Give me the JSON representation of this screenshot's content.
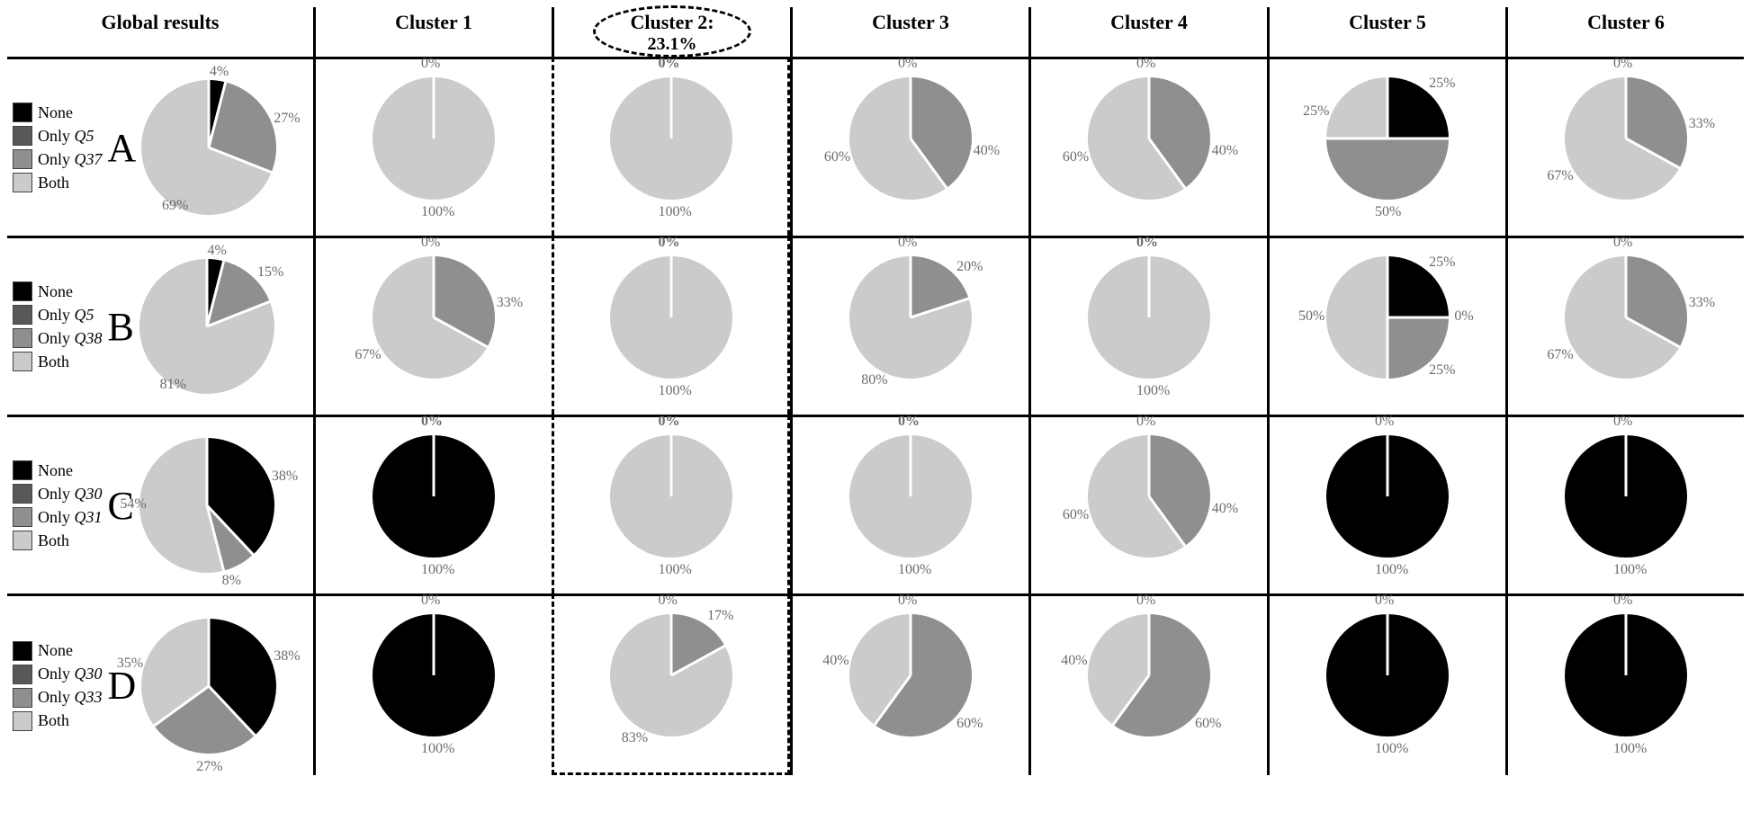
{
  "colors": {
    "none": "#000000",
    "onlyA": "#585858",
    "onlyB": "#8f8f8f",
    "both": "#cbcbcb",
    "gap": "#ffffff",
    "label": "#6b6b6b"
  },
  "geometry": {
    "global_pie_r": 75,
    "cluster_pie_r": 68,
    "gap_width": 3
  },
  "headers": {
    "global": "Global results",
    "clusters": [
      "Cluster 1",
      "Cluster 2:",
      "Cluster 3",
      "Cluster 4",
      "Cluster 5",
      "Cluster 6"
    ],
    "cluster2_sub": "23.1%"
  },
  "rows": [
    {
      "letter": "A",
      "legend": [
        "None",
        "Only Q5",
        "Only Q37",
        "Both"
      ],
      "legend_italic_idx": [
        1,
        2
      ],
      "global": {
        "slices": [
          {
            "key": "none",
            "pct": 4
          },
          {
            "key": "onlyB",
            "pct": 27
          },
          {
            "key": "both",
            "pct": 69
          }
        ],
        "labels": [
          {
            "text": "4%",
            "ang": -80,
            "r": 1.12
          },
          {
            "text": "27%",
            "ang": -20,
            "r": 1.22
          },
          {
            "text": "69%",
            "ang": 120,
            "r": 1.02
          }
        ]
      },
      "clusters": [
        {
          "slices": [
            {
              "key": "both",
              "pct": 100
            }
          ],
          "labels": [
            {
              "text": "0%",
              "ang": -90,
              "r": 1.2
            },
            {
              "text": "100%",
              "ang": 90,
              "r": 1.22
            }
          ]
        },
        {
          "slices": [
            {
              "key": "both",
              "pct": 100
            }
          ],
          "labels": [
            {
              "text": "0%",
              "ang": -90,
              "r": 1.2,
              "bold": true
            },
            {
              "text": "100%",
              "ang": 90,
              "r": 1.22
            }
          ]
        },
        {
          "slices": [
            {
              "key": "onlyB",
              "pct": 40
            },
            {
              "key": "both",
              "pct": 60
            }
          ],
          "labels": [
            {
              "text": "0%",
              "ang": -90,
              "r": 1.2
            },
            {
              "text": "40%",
              "ang": 10,
              "r": 1.25
            },
            {
              "text": "60%",
              "ang": 165,
              "r": 1.25
            }
          ]
        },
        {
          "slices": [
            {
              "key": "onlyB",
              "pct": 40
            },
            {
              "key": "both",
              "pct": 60
            }
          ],
          "labels": [
            {
              "text": "0%",
              "ang": -90,
              "r": 1.2
            },
            {
              "text": "40%",
              "ang": 10,
              "r": 1.25
            },
            {
              "text": "60%",
              "ang": 165,
              "r": 1.25
            }
          ]
        },
        {
          "slices": [
            {
              "key": "none",
              "pct": 25
            },
            {
              "key": "onlyB",
              "pct": 50
            },
            {
              "key": "both",
              "pct": 25
            }
          ],
          "labels": [
            {
              "text": "25%",
              "ang": -45,
              "r": 1.25
            },
            {
              "text": "50%",
              "ang": 90,
              "r": 1.22
            },
            {
              "text": "25%",
              "ang": 200,
              "r": 1.25
            }
          ]
        },
        {
          "slices": [
            {
              "key": "onlyB",
              "pct": 33
            },
            {
              "key": "both",
              "pct": 67
            }
          ],
          "labels": [
            {
              "text": "0%",
              "ang": -90,
              "r": 1.2
            },
            {
              "text": "33%",
              "ang": -10,
              "r": 1.25
            },
            {
              "text": "67%",
              "ang": 150,
              "r": 1.25
            }
          ]
        }
      ]
    },
    {
      "letter": "B",
      "legend": [
        "None",
        "Only Q5",
        "Only Q38",
        "Both"
      ],
      "legend_italic_idx": [
        1,
        2
      ],
      "global": {
        "slices": [
          {
            "key": "none",
            "pct": 4
          },
          {
            "key": "onlyB",
            "pct": 15
          },
          {
            "key": "both",
            "pct": 81
          }
        ],
        "labels": [
          {
            "text": "4%",
            "ang": -80,
            "r": 1.12
          },
          {
            "text": "15%",
            "ang": -40,
            "r": 1.22
          },
          {
            "text": "81%",
            "ang": 120,
            "r": 1.02
          }
        ]
      },
      "clusters": [
        {
          "slices": [
            {
              "key": "onlyB",
              "pct": 33
            },
            {
              "key": "both",
              "pct": 67
            }
          ],
          "labels": [
            {
              "text": "0%",
              "ang": -90,
              "r": 1.2
            },
            {
              "text": "33%",
              "ang": -10,
              "r": 1.25
            },
            {
              "text": "67%",
              "ang": 150,
              "r": 1.25
            }
          ]
        },
        {
          "slices": [
            {
              "key": "both",
              "pct": 100
            }
          ],
          "labels": [
            {
              "text": "0%",
              "ang": -90,
              "r": 1.2,
              "bold": true
            },
            {
              "text": "100%",
              "ang": 90,
              "r": 1.22
            }
          ]
        },
        {
          "slices": [
            {
              "key": "onlyB",
              "pct": 20
            },
            {
              "key": "both",
              "pct": 80
            }
          ],
          "labels": [
            {
              "text": "0%",
              "ang": -90,
              "r": 1.2
            },
            {
              "text": "20%",
              "ang": -40,
              "r": 1.25
            },
            {
              "text": "80%",
              "ang": 120,
              "r": 1.2
            }
          ]
        },
        {
          "slices": [
            {
              "key": "both",
              "pct": 100
            }
          ],
          "labels": [
            {
              "text": "0%",
              "ang": -90,
              "r": 1.2,
              "bold": true
            },
            {
              "text": "100%",
              "ang": 90,
              "r": 1.22
            }
          ]
        },
        {
          "slices": [
            {
              "key": "none",
              "pct": 25
            },
            {
              "key": "onlyA",
              "pct": 0
            },
            {
              "key": "onlyB",
              "pct": 25
            },
            {
              "key": "both",
              "pct": 50
            }
          ],
          "labels": [
            {
              "text": "25%",
              "ang": -45,
              "r": 1.25
            },
            {
              "text": "0%",
              "ang": 0,
              "r": 1.3
            },
            {
              "text": "25%",
              "ang": 45,
              "r": 1.25
            },
            {
              "text": "50%",
              "ang": 180,
              "r": 1.25
            }
          ]
        },
        {
          "slices": [
            {
              "key": "onlyB",
              "pct": 33
            },
            {
              "key": "both",
              "pct": 67
            }
          ],
          "labels": [
            {
              "text": "0%",
              "ang": -90,
              "r": 1.2
            },
            {
              "text": "33%",
              "ang": -10,
              "r": 1.25
            },
            {
              "text": "67%",
              "ang": 150,
              "r": 1.25
            }
          ]
        }
      ]
    },
    {
      "letter": "C",
      "legend": [
        "None",
        "Only Q30",
        "Only Q31",
        "Both"
      ],
      "legend_italic_idx": [
        1,
        2
      ],
      "global": {
        "slices": [
          {
            "key": "none",
            "pct": 38
          },
          {
            "key": "onlyB",
            "pct": 8
          },
          {
            "key": "both",
            "pct": 54
          }
        ],
        "labels": [
          {
            "text": "38%",
            "ang": -20,
            "r": 1.22
          },
          {
            "text": "8%",
            "ang": 70,
            "r": 1.2
          },
          {
            "text": "54%",
            "ang": 180,
            "r": 1.1
          }
        ]
      },
      "clusters": [
        {
          "slices": [
            {
              "key": "none",
              "pct": 100
            }
          ],
          "labels": [
            {
              "text": "0%",
              "ang": -90,
              "r": 1.2,
              "bold": true
            },
            {
              "text": "100%",
              "ang": 90,
              "r": 1.22
            }
          ]
        },
        {
          "slices": [
            {
              "key": "both",
              "pct": 100
            }
          ],
          "labels": [
            {
              "text": "0%",
              "ang": -90,
              "r": 1.2,
              "bold": true
            },
            {
              "text": "100%",
              "ang": 90,
              "r": 1.22
            }
          ]
        },
        {
          "slices": [
            {
              "key": "both",
              "pct": 100
            }
          ],
          "labels": [
            {
              "text": "0%",
              "ang": -90,
              "r": 1.2,
              "bold": true
            },
            {
              "text": "100%",
              "ang": 90,
              "r": 1.22
            }
          ]
        },
        {
          "slices": [
            {
              "key": "onlyB",
              "pct": 40
            },
            {
              "key": "both",
              "pct": 60
            }
          ],
          "labels": [
            {
              "text": "0%",
              "ang": -90,
              "r": 1.2
            },
            {
              "text": "40%",
              "ang": 10,
              "r": 1.25
            },
            {
              "text": "60%",
              "ang": 165,
              "r": 1.25
            }
          ]
        },
        {
          "slices": [
            {
              "key": "none",
              "pct": 100
            }
          ],
          "labels": [
            {
              "text": "0%",
              "ang": -90,
              "r": 1.2
            },
            {
              "text": "100%",
              "ang": 90,
              "r": 1.22
            }
          ]
        },
        {
          "slices": [
            {
              "key": "none",
              "pct": 100
            }
          ],
          "labels": [
            {
              "text": "0%",
              "ang": -90,
              "r": 1.2
            },
            {
              "text": "100%",
              "ang": 90,
              "r": 1.22
            }
          ]
        }
      ]
    },
    {
      "letter": "D",
      "legend": [
        "None",
        "Only Q30",
        "Only Q33",
        "Both"
      ],
      "legend_italic_idx": [
        1,
        2
      ],
      "global": {
        "slices": [
          {
            "key": "none",
            "pct": 38
          },
          {
            "key": "onlyB",
            "pct": 27
          },
          {
            "key": "both",
            "pct": 35
          }
        ],
        "labels": [
          {
            "text": "38%",
            "ang": -20,
            "r": 1.22
          },
          {
            "text": "27%",
            "ang": 90,
            "r": 1.22
          },
          {
            "text": "35%",
            "ang": 195,
            "r": 1.22
          }
        ]
      },
      "clusters": [
        {
          "slices": [
            {
              "key": "none",
              "pct": 100
            }
          ],
          "labels": [
            {
              "text": "0%",
              "ang": -90,
              "r": 1.2
            },
            {
              "text": "100%",
              "ang": 90,
              "r": 1.22
            }
          ]
        },
        {
          "slices": [
            {
              "key": "onlyB",
              "pct": 17
            },
            {
              "key": "both",
              "pct": 83
            }
          ],
          "labels": [
            {
              "text": "0%",
              "ang": -90,
              "r": 1.2
            },
            {
              "text": "17%",
              "ang": -50,
              "r": 1.25
            },
            {
              "text": "83%",
              "ang": 120,
              "r": 1.2
            }
          ]
        },
        {
          "slices": [
            {
              "key": "onlyB",
              "pct": 60
            },
            {
              "key": "both",
              "pct": 40
            }
          ],
          "labels": [
            {
              "text": "0%",
              "ang": -90,
              "r": 1.2
            },
            {
              "text": "60%",
              "ang": 40,
              "r": 1.25
            },
            {
              "text": "40%",
              "ang": 190,
              "r": 1.25
            }
          ]
        },
        {
          "slices": [
            {
              "key": "onlyB",
              "pct": 60
            },
            {
              "key": "both",
              "pct": 40
            }
          ],
          "labels": [
            {
              "text": "0%",
              "ang": -90,
              "r": 1.2
            },
            {
              "text": "60%",
              "ang": 40,
              "r": 1.25
            },
            {
              "text": "40%",
              "ang": 190,
              "r": 1.25
            }
          ]
        },
        {
          "slices": [
            {
              "key": "none",
              "pct": 100
            }
          ],
          "labels": [
            {
              "text": "0%",
              "ang": -90,
              "r": 1.2
            },
            {
              "text": "100%",
              "ang": 90,
              "r": 1.22
            }
          ]
        },
        {
          "slices": [
            {
              "key": "none",
              "pct": 100
            }
          ],
          "labels": [
            {
              "text": "0%",
              "ang": -90,
              "r": 1.2
            },
            {
              "text": "100%",
              "ang": 90,
              "r": 1.22
            }
          ]
        }
      ]
    }
  ]
}
